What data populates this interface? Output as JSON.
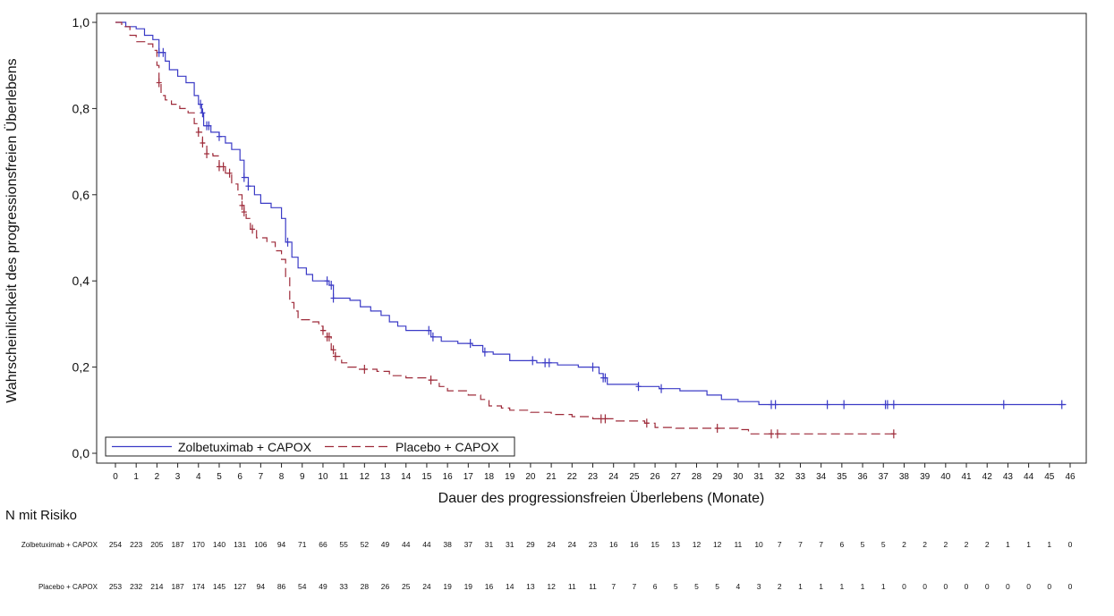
{
  "chart_data": {
    "type": "line",
    "title": "",
    "xlabel": "Dauer des progressionsfreien Überlebens (Monate)",
    "ylabel": "Wahrscheinlichkeit des progressionsfreien Überlebens",
    "xlim": [
      0,
      46
    ],
    "ylim": [
      0,
      1
    ],
    "x_ticks": [
      "0",
      "1",
      "2",
      "3",
      "4",
      "5",
      "6",
      "7",
      "8",
      "9",
      "10",
      "11",
      "12",
      "13",
      "14",
      "15",
      "16",
      "17",
      "18",
      "19",
      "20",
      "21",
      "22",
      "23",
      "24",
      "25",
      "26",
      "27",
      "28",
      "29",
      "30",
      "31",
      "32",
      "33",
      "34",
      "35",
      "36",
      "37",
      "38",
      "39",
      "40",
      "41",
      "42",
      "43",
      "44",
      "45",
      "46"
    ],
    "y_ticks": [
      "0,0",
      "0,2",
      "0,4",
      "0,6",
      "0,8",
      "1,0"
    ],
    "y_tick_values": [
      0,
      0.2,
      0.4,
      0.6,
      0.8,
      1.0
    ],
    "legend_position": "bottom-left",
    "series": [
      {
        "name": "Zolbetuximab + CAPOX",
        "color": "#3b3bc6",
        "dash": "solid",
        "steps": [
          [
            0,
            1.0
          ],
          [
            0.5,
            0.99
          ],
          [
            1.0,
            0.985
          ],
          [
            1.4,
            0.97
          ],
          [
            1.8,
            0.96
          ],
          [
            2.1,
            0.93
          ],
          [
            2.4,
            0.91
          ],
          [
            2.6,
            0.89
          ],
          [
            3.0,
            0.875
          ],
          [
            3.4,
            0.86
          ],
          [
            3.8,
            0.83
          ],
          [
            4.0,
            0.81
          ],
          [
            4.15,
            0.79
          ],
          [
            4.25,
            0.76
          ],
          [
            4.6,
            0.745
          ],
          [
            5.0,
            0.735
          ],
          [
            5.3,
            0.72
          ],
          [
            5.6,
            0.705
          ],
          [
            6.0,
            0.68
          ],
          [
            6.2,
            0.64
          ],
          [
            6.4,
            0.62
          ],
          [
            6.7,
            0.6
          ],
          [
            7.0,
            0.58
          ],
          [
            7.5,
            0.57
          ],
          [
            8.0,
            0.545
          ],
          [
            8.2,
            0.49
          ],
          [
            8.5,
            0.455
          ],
          [
            8.8,
            0.43
          ],
          [
            9.2,
            0.415
          ],
          [
            9.5,
            0.4
          ],
          [
            10.3,
            0.39
          ],
          [
            10.5,
            0.36
          ],
          [
            11.3,
            0.355
          ],
          [
            11.8,
            0.34
          ],
          [
            12.3,
            0.33
          ],
          [
            12.8,
            0.32
          ],
          [
            13.2,
            0.305
          ],
          [
            13.6,
            0.295
          ],
          [
            14.0,
            0.285
          ],
          [
            15.2,
            0.27
          ],
          [
            15.7,
            0.26
          ],
          [
            16.5,
            0.255
          ],
          [
            17.2,
            0.25
          ],
          [
            17.7,
            0.235
          ],
          [
            18.2,
            0.23
          ],
          [
            19.0,
            0.215
          ],
          [
            20.3,
            0.21
          ],
          [
            21.3,
            0.205
          ],
          [
            22.3,
            0.2
          ],
          [
            23.3,
            0.185
          ],
          [
            23.5,
            0.175
          ],
          [
            23.7,
            0.16
          ],
          [
            25.2,
            0.155
          ],
          [
            26.2,
            0.15
          ],
          [
            27.2,
            0.145
          ],
          [
            28.5,
            0.135
          ],
          [
            29.2,
            0.125
          ],
          [
            30.0,
            0.12
          ],
          [
            31.0,
            0.113
          ],
          [
            45.8,
            0.113
          ]
        ],
        "censor_x": [
          2.1,
          2.3,
          4.1,
          4.2,
          4.4,
          4.5,
          5.0,
          6.2,
          6.4,
          8.3,
          10.2,
          10.4,
          10.5,
          15.1,
          15.3,
          17.1,
          17.8,
          20.1,
          20.7,
          20.9,
          23.0,
          23.5,
          23.6,
          25.2,
          26.3,
          31.6,
          31.8,
          34.3,
          35.1,
          37.1,
          37.2,
          37.5,
          42.8,
          45.6
        ]
      },
      {
        "name": "Placebo + CAPOX",
        "color": "#9e2b3a",
        "dash": "dashed",
        "steps": [
          [
            0,
            1.0
          ],
          [
            0.3,
            0.99
          ],
          [
            0.7,
            0.97
          ],
          [
            1.0,
            0.955
          ],
          [
            1.5,
            0.95
          ],
          [
            1.8,
            0.935
          ],
          [
            2.0,
            0.9
          ],
          [
            2.1,
            0.86
          ],
          [
            2.2,
            0.83
          ],
          [
            2.4,
            0.82
          ],
          [
            2.7,
            0.81
          ],
          [
            3.1,
            0.8
          ],
          [
            3.5,
            0.79
          ],
          [
            3.8,
            0.765
          ],
          [
            4.0,
            0.745
          ],
          [
            4.2,
            0.72
          ],
          [
            4.4,
            0.695
          ],
          [
            4.7,
            0.69
          ],
          [
            5.0,
            0.665
          ],
          [
            5.3,
            0.65
          ],
          [
            5.6,
            0.625
          ],
          [
            5.9,
            0.6
          ],
          [
            6.1,
            0.575
          ],
          [
            6.2,
            0.56
          ],
          [
            6.3,
            0.545
          ],
          [
            6.5,
            0.52
          ],
          [
            6.8,
            0.5
          ],
          [
            7.3,
            0.49
          ],
          [
            7.7,
            0.47
          ],
          [
            8.0,
            0.45
          ],
          [
            8.2,
            0.41
          ],
          [
            8.4,
            0.35
          ],
          [
            8.6,
            0.33
          ],
          [
            8.8,
            0.31
          ],
          [
            9.5,
            0.305
          ],
          [
            9.8,
            0.295
          ],
          [
            10.0,
            0.285
          ],
          [
            10.2,
            0.27
          ],
          [
            10.4,
            0.24
          ],
          [
            10.6,
            0.225
          ],
          [
            10.9,
            0.21
          ],
          [
            11.2,
            0.2
          ],
          [
            11.6,
            0.195
          ],
          [
            12.6,
            0.19
          ],
          [
            13.2,
            0.18
          ],
          [
            14.0,
            0.175
          ],
          [
            15.0,
            0.17
          ],
          [
            15.6,
            0.155
          ],
          [
            16.0,
            0.145
          ],
          [
            17.0,
            0.135
          ],
          [
            17.6,
            0.125
          ],
          [
            18.0,
            0.11
          ],
          [
            18.6,
            0.105
          ],
          [
            19.0,
            0.1
          ],
          [
            20.0,
            0.095
          ],
          [
            21.0,
            0.09
          ],
          [
            22.0,
            0.085
          ],
          [
            23.0,
            0.08
          ],
          [
            24.0,
            0.075
          ],
          [
            25.5,
            0.07
          ],
          [
            26.0,
            0.06
          ],
          [
            27.0,
            0.058
          ],
          [
            30.0,
            0.055
          ],
          [
            30.5,
            0.045
          ],
          [
            37.6,
            0.045
          ]
        ],
        "censor_x": [
          2.1,
          4.0,
          4.2,
          4.4,
          5.0,
          5.2,
          5.5,
          6.1,
          6.2,
          6.6,
          10.0,
          10.2,
          10.3,
          10.5,
          10.6,
          12.0,
          15.2,
          23.4,
          23.6,
          25.6,
          29.0,
          31.6,
          31.9,
          37.5
        ]
      }
    ],
    "risk_table": {
      "title": "N mit Risiko",
      "rows": [
        {
          "label": "Zolbetuximab + CAPOX",
          "values": [
            "254",
            "223",
            "205",
            "187",
            "170",
            "140",
            "131",
            "106",
            "94",
            "71",
            "66",
            "55",
            "52",
            "49",
            "44",
            "44",
            "38",
            "37",
            "31",
            "31",
            "29",
            "24",
            "24",
            "23",
            "16",
            "16",
            "15",
            "13",
            "12",
            "12",
            "11",
            "10",
            "7",
            "7",
            "7",
            "6",
            "5",
            "5",
            "2",
            "2",
            "2",
            "2",
            "2",
            "1",
            "1",
            "1",
            "0"
          ]
        },
        {
          "label": "Placebo + CAPOX",
          "values": [
            "253",
            "232",
            "214",
            "187",
            "174",
            "145",
            "127",
            "94",
            "86",
            "54",
            "49",
            "33",
            "28",
            "26",
            "25",
            "24",
            "19",
            "19",
            "16",
            "14",
            "13",
            "12",
            "11",
            "11",
            "7",
            "7",
            "6",
            "5",
            "5",
            "5",
            "4",
            "3",
            "2",
            "1",
            "1",
            "1",
            "1",
            "1",
            "0",
            "0",
            "0",
            "0",
            "0",
            "0",
            "0",
            "0",
            "0"
          ]
        }
      ]
    }
  }
}
